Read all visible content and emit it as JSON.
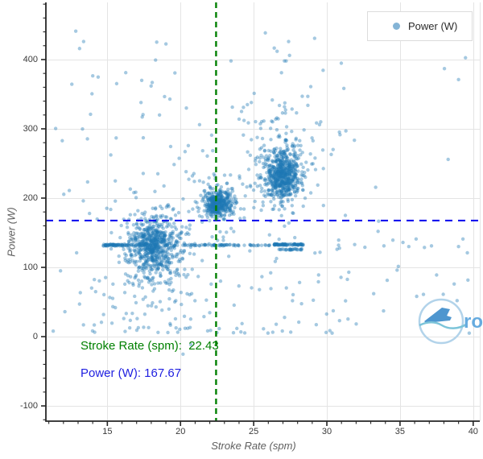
{
  "axes": {
    "xlabel": "Stroke Rate (spm)",
    "ylabel": "Power (W)"
  },
  "legend": {
    "label": "Power (W)",
    "marker_color": "rgba(31,119,180,0.55)"
  },
  "annotations": {
    "stroke_rate": {
      "text": "Stroke Rate (spm):  22.43",
      "color": "#008000"
    },
    "power": {
      "text": "Power (W): 167.67",
      "color": "#1f1fe0"
    }
  },
  "watermark": {
    "text": "rows",
    "circle_color": "#b2d3ea",
    "boat_color": "#4e96cf",
    "wave_color": "#7cc4d9",
    "text_color": "#66abdf"
  },
  "chart_data": {
    "type": "scatter",
    "title": "",
    "xlabel": "Stroke Rate (spm)",
    "ylabel": "Power (W)",
    "xlim": [
      10.8,
      40.45
    ],
    "ylim": [
      -122,
      482.5
    ],
    "x_ticks": [
      15,
      20,
      25,
      30,
      35,
      40
    ],
    "y_ticks": [
      -100,
      0,
      100,
      200,
      300,
      400
    ],
    "x_minor_step": 1,
    "y_minor_step": 20,
    "grid": true,
    "grid_color": "#e4e4e4",
    "axis_color": "#262626",
    "legend_position": "top-right",
    "series": [
      {
        "name": "Power (W)",
        "marker": "circle",
        "color": "#1f77b4",
        "opacity": 0.4,
        "radius": 2.2
      }
    ],
    "reference_lines": [
      {
        "axis": "y",
        "value": 167.67,
        "label": "Power (W): 167.67",
        "color": "#0000ee",
        "style": "dashed",
        "width": 2
      },
      {
        "axis": "x",
        "value": 22.43,
        "label": "Stroke Rate (spm): 22.43",
        "color": "#008000",
        "style": "dashed",
        "width": 2.4
      }
    ],
    "clusters": [
      {
        "name": "low-rate-cluster",
        "cx": 18.2,
        "cy": 131,
        "sx": 1.05,
        "sy": 27,
        "n": 480
      },
      {
        "name": "low-rate-core",
        "cx": 18.1,
        "cy": 133,
        "sx": 0.5,
        "sy": 12,
        "n": 170
      },
      {
        "name": "low-rate-tail",
        "cx": 18.4,
        "cy": 95,
        "sx": 1.6,
        "sy": 45,
        "n": 90
      },
      {
        "name": "mid-rate-cluster",
        "cx": 22.45,
        "cy": 191,
        "sx": 0.42,
        "sy": 11,
        "n": 240
      },
      {
        "name": "mid-rate-core",
        "cx": 22.4,
        "cy": 190,
        "sx": 0.25,
        "sy": 8,
        "n": 90
      },
      {
        "name": "mid-rate-sub",
        "cx": 23.4,
        "cy": 195,
        "sx": 0.25,
        "sy": 10,
        "n": 45
      },
      {
        "name": "mid-rate-halo",
        "cx": 22.5,
        "cy": 200,
        "sx": 1.0,
        "sy": 35,
        "n": 70
      },
      {
        "name": "high-rate-cluster",
        "cx": 27.0,
        "cy": 233,
        "sx": 0.72,
        "sy": 21,
        "n": 430
      },
      {
        "name": "high-rate-core",
        "cx": 26.9,
        "cy": 230,
        "sx": 0.45,
        "sy": 14,
        "n": 180
      },
      {
        "name": "high-rate-halo",
        "cx": 27.0,
        "cy": 255,
        "sx": 1.3,
        "sy": 45,
        "n": 110
      }
    ],
    "bands": [
      {
        "y": 132,
        "jitter": 1.2,
        "x_from": 14.5,
        "x_to": 16.2,
        "n": 55
      },
      {
        "y": 132,
        "jitter": 1.0,
        "x_from": 16.2,
        "x_to": 24.2,
        "n": 95
      },
      {
        "y": 132,
        "jitter": 1.0,
        "x_from": 24.2,
        "x_to": 26.2,
        "n": 16
      },
      {
        "y": 133,
        "jitter": 1.0,
        "x_from": 26.3,
        "x_to": 28.4,
        "n": 80
      },
      {
        "y": 126,
        "jitter": 1.0,
        "x_from": 26.7,
        "x_to": 28.3,
        "n": 28
      }
    ],
    "background": {
      "n": 210,
      "x_from": 11,
      "x_to": 40,
      "y_from": 5,
      "y_to": 450
    },
    "outliers": [
      [
        17.35,
        370
      ],
      [
        17.3,
        338
      ],
      [
        20.4,
        330
      ],
      [
        23.45,
        398
      ],
      [
        26.6,
        412
      ],
      [
        27.1,
        398
      ],
      [
        27.45,
        406
      ],
      [
        26.9,
        381
      ],
      [
        28.9,
        361
      ],
      [
        13.85,
        321
      ],
      [
        31.3,
        297
      ],
      [
        24.3,
        331
      ],
      [
        29.5,
        306
      ],
      [
        21.3,
        306
      ],
      [
        25.6,
        286
      ],
      [
        30.3,
        263
      ],
      [
        12.4,
        211
      ],
      [
        33.5,
        152
      ],
      [
        36.1,
        141
      ],
      [
        34.8,
        96
      ],
      [
        37.5,
        89
      ],
      [
        38.7,
        76
      ],
      [
        39.3,
        141
      ],
      [
        36.6,
        61
      ],
      [
        33.2,
        62
      ],
      [
        31.5,
        93
      ],
      [
        32.6,
        129
      ],
      [
        35.2,
        136
      ],
      [
        38.2,
        36
      ],
      [
        39.6,
        121
      ],
      [
        30.8,
        132
      ],
      [
        31.9,
        133
      ],
      [
        33.9,
        131
      ],
      [
        35.6,
        130
      ],
      [
        37.15,
        131
      ],
      [
        39.0,
        130
      ],
      [
        38.9,
        52
      ],
      [
        11.3,
        8
      ],
      [
        12.1,
        36
      ],
      [
        11.8,
        95
      ],
      [
        12.9,
        121
      ],
      [
        14.2,
        65
      ],
      [
        13.1,
        47
      ]
    ]
  }
}
